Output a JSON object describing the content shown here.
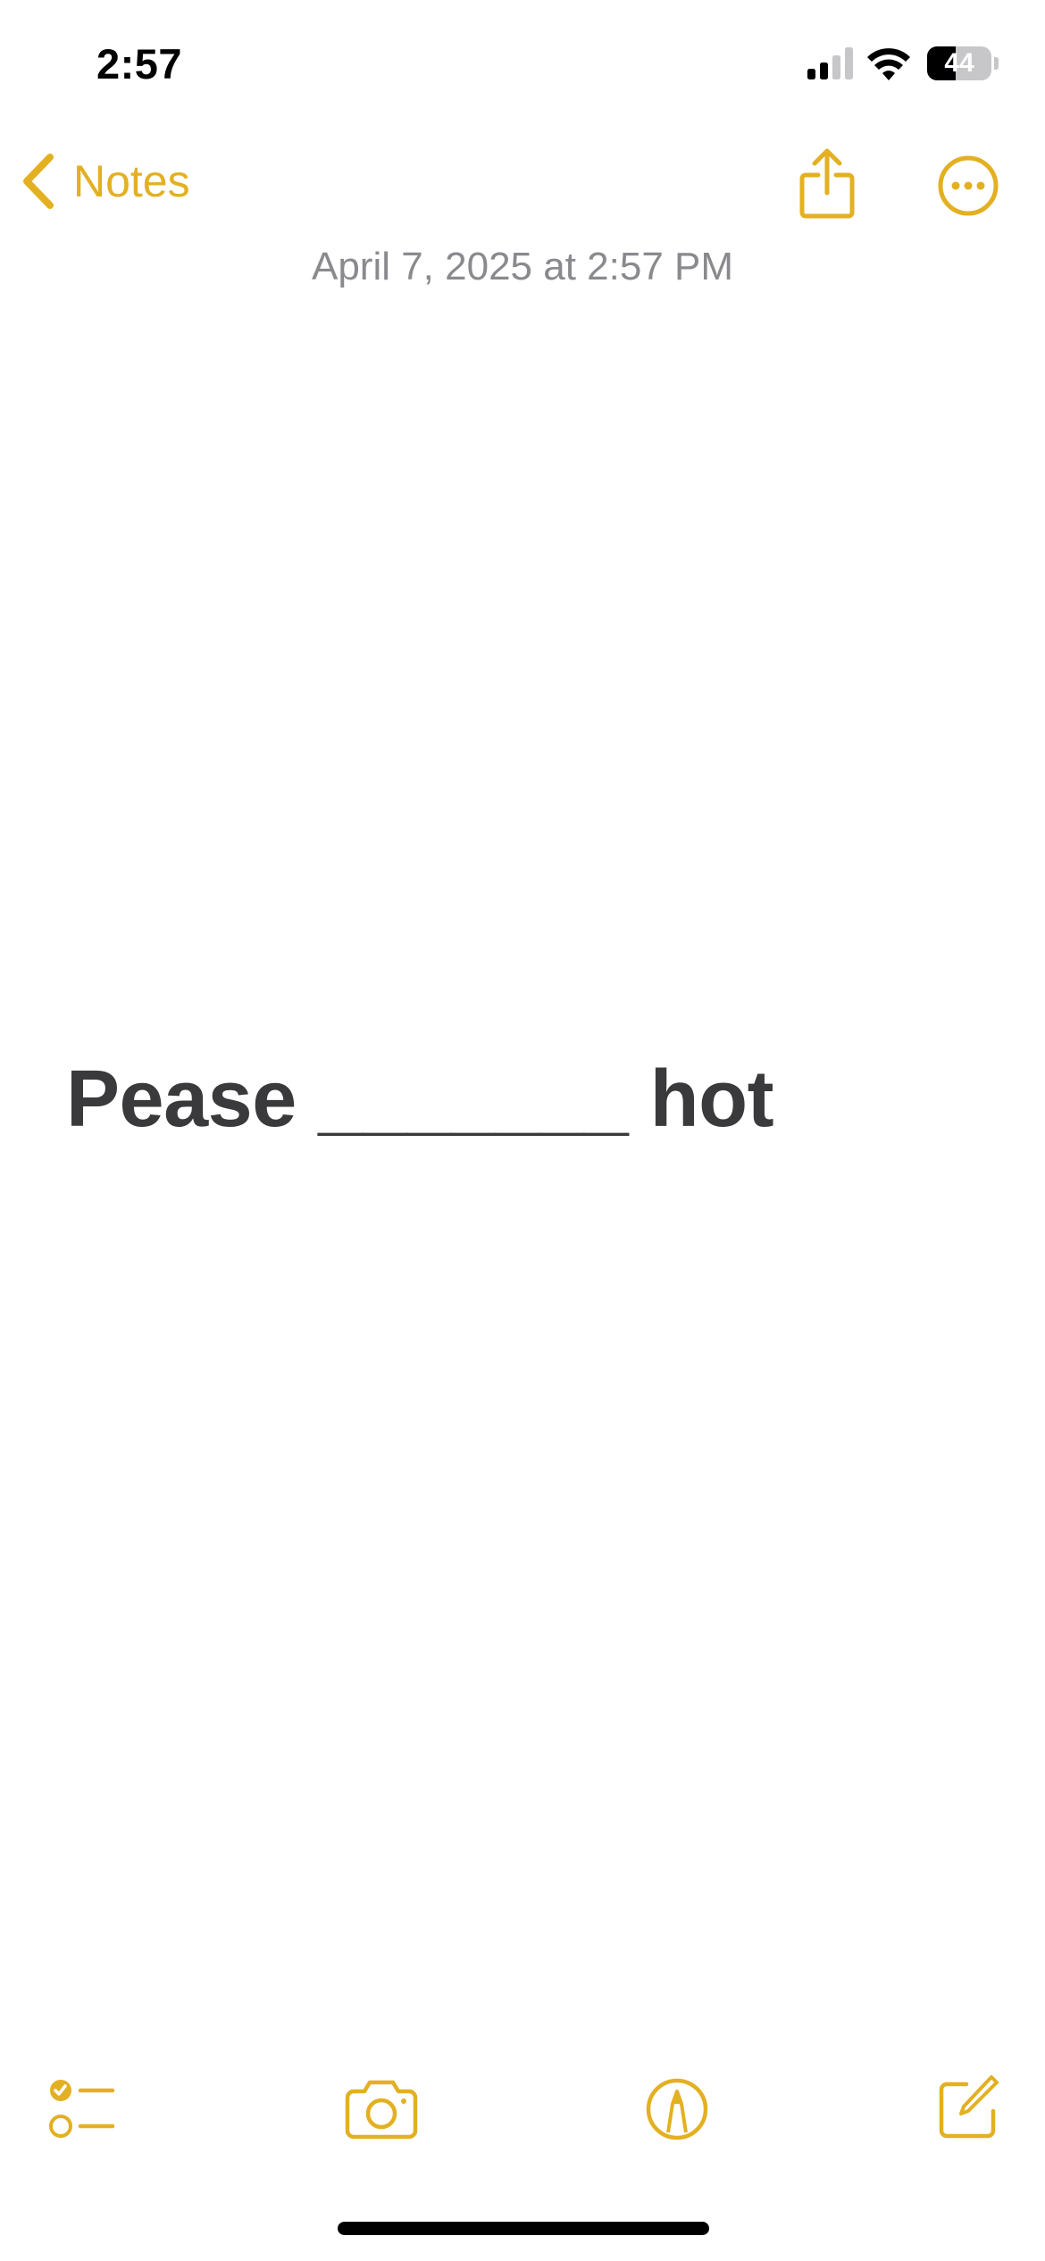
{
  "status_bar": {
    "time": "2:57",
    "battery_level": "44"
  },
  "nav": {
    "back_label": "Notes",
    "back_icon": "chevron-left-icon",
    "share_icon": "share-icon",
    "more_icon": "ellipsis-circle-icon"
  },
  "note": {
    "date": "April 7, 2025 at 2:57 PM",
    "body": "Pease _______ hot"
  },
  "toolbar": {
    "icons": [
      "checklist-icon",
      "camera-icon",
      "markup-icon",
      "compose-icon"
    ]
  },
  "colors": {
    "accent": "#E3B022",
    "text": "#3a3a3c",
    "secondary_text": "#8a8a8e",
    "background": "#ffffff"
  }
}
